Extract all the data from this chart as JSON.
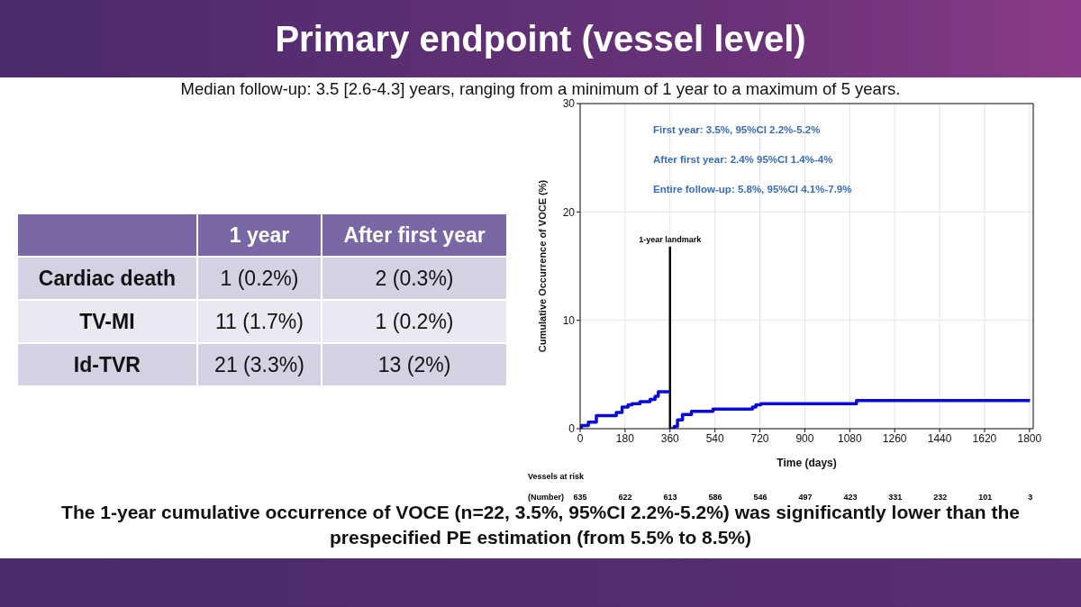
{
  "chart_data": [
    {
      "type": "other",
      "title": "Primary endpoint (vessel level)",
      "subtitle": "Median follow-up: 3.5 [2.6-4.3] years, ranging from a minimum of 1 year to a maximum of 5 years.",
      "categories": [
        "1 year",
        "After first year"
      ],
      "y_categories": [
        "Cardiac death",
        "TV-MI",
        "Id-TVR"
      ],
      "cell_labels": [
        [
          "1 (0.2%)",
          "2 (0.3%)"
        ],
        [
          "11 (1.7%)",
          "1 (0.2%)"
        ],
        [
          "21 (3.3%)",
          "13 (2%)"
        ]
      ],
      "annotations": [
        "The 1-year cumulative occurrence of VOCE (n=22, 3.5%, 95%CI 2.2%-5.2%) was significantly lower than the prespecified PE estimation (from 5.5% to 8.5%)"
      ]
    },
    {
      "type": "step",
      "xlabel": "Time (days)",
      "ylabel": "Cumulative Occurrence of VOCE (%)",
      "series": [
        {
          "color": "#0a0ad8",
          "x": [
            0,
            5,
            33,
            65,
            145,
            168,
            192,
            208,
            240,
            280,
            300,
            313,
            360
          ],
          "values": [
            0,
            0.3,
            0.6,
            1.2,
            1.5,
            2.0,
            2.2,
            2.3,
            2.5,
            2.7,
            3.0,
            3.4,
            3.4
          ]
        },
        {
          "color": "#0a0ad8",
          "x": [
            360,
            377,
            390,
            410,
            446,
            532,
            690,
            704,
            724,
            1107,
            1802
          ],
          "values": [
            0,
            0.2,
            0.8,
            1.3,
            1.6,
            1.8,
            2.0,
            2.2,
            2.3,
            2.6,
            2.6
          ]
        }
      ],
      "xlim": [
        0,
        1815
      ],
      "xticks": [
        0,
        180,
        360,
        540,
        720,
        900,
        1080,
        1260,
        1440,
        1620,
        1800
      ],
      "ylim": [
        0,
        30
      ],
      "yticks": [
        0,
        10,
        20,
        30
      ],
      "grid": true,
      "legend": false,
      "marker": "none",
      "line_style": "solid",
      "ref_lines": [
        {
          "axis": "x",
          "value": 360,
          "label": "1-year landmark",
          "color": "#000000"
        }
      ],
      "annotations": [
        "First year: 3.5%, 95%CI 2.2%-5.2%",
        "After first year: 2.4% 95%CI 1.4%-4%",
        "Entire follow-up: 5.8%, 95%CI 4.1%-7.9%",
        "Vessels at risk",
        "(Number)",
        "635",
        "622",
        "613",
        "586",
        "546",
        "497",
        "423",
        "331",
        "232",
        "101",
        "3"
      ]
    }
  ]
}
